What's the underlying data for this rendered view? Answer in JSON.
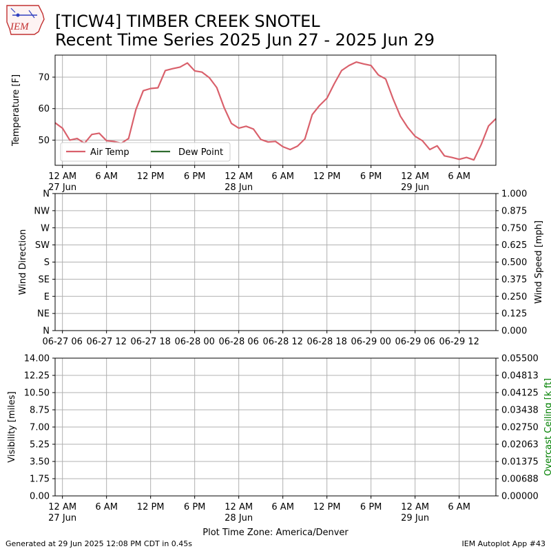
{
  "header": {
    "title_line1": "[TICW4] TIMBER CREEK SNOTEL",
    "title_line2": "Recent Time Series 2025 Jun 27 - 2025 Jun 29",
    "logo_text": "IEM"
  },
  "footer": {
    "generated": "Generated at 29 Jun 2025 12:08 PM CDT in 0.45s",
    "app": "IEM Autoplot App #43"
  },
  "colors": {
    "air_temp": "#d9606b",
    "dew_point": "#2e6b2e",
    "ceiling_label": "#008000",
    "grid": "#b0b0b0"
  },
  "chart_data": [
    {
      "type": "line",
      "ylabel": "Temperature [F]",
      "xlim_hours": [
        -1,
        59
      ],
      "ylim": [
        42,
        77
      ],
      "yticks": [
        50,
        60,
        70
      ],
      "grid": true,
      "legend": {
        "placement": "lower-left",
        "entries": [
          "Air Temp",
          "Dew Point"
        ]
      },
      "x_tick_labels": [
        {
          "hour": 0,
          "line1": "12 AM",
          "line2": "27 Jun"
        },
        {
          "hour": 6,
          "line1": "6 AM",
          "line2": ""
        },
        {
          "hour": 12,
          "line1": "12 PM",
          "line2": ""
        },
        {
          "hour": 18,
          "line1": "6 PM",
          "line2": ""
        },
        {
          "hour": 24,
          "line1": "12 AM",
          "line2": "28 Jun"
        },
        {
          "hour": 30,
          "line1": "6 AM",
          "line2": ""
        },
        {
          "hour": 36,
          "line1": "12 PM",
          "line2": ""
        },
        {
          "hour": 42,
          "line1": "6 PM",
          "line2": ""
        },
        {
          "hour": 48,
          "line1": "12 AM",
          "line2": "29 Jun"
        },
        {
          "hour": 54,
          "line1": "6 AM",
          "line2": ""
        }
      ],
      "series": [
        {
          "name": "Air Temp",
          "x_hours": [
            -1,
            0,
            1,
            2,
            3,
            4,
            5,
            6,
            7,
            8,
            9,
            10,
            11,
            12,
            13,
            14,
            15,
            16,
            17,
            18,
            19,
            20,
            21,
            22,
            23,
            24,
            25,
            26,
            27,
            28,
            29,
            30,
            31,
            32,
            33,
            34,
            35,
            36,
            37,
            38,
            39,
            40,
            41,
            42,
            43,
            44,
            45,
            46,
            47,
            48,
            49,
            50,
            51,
            52,
            53,
            54,
            55,
            56,
            57,
            58,
            59
          ],
          "values": [
            55.5,
            53.8,
            50.0,
            50.5,
            49.0,
            51.8,
            52.2,
            49.8,
            49.6,
            49.0,
            50.5,
            59.7,
            65.7,
            66.4,
            66.6,
            72.1,
            72.7,
            73.2,
            74.5,
            72.0,
            71.6,
            69.8,
            66.7,
            60.4,
            55.3,
            53.8,
            54.4,
            53.5,
            50.2,
            49.4,
            49.6,
            47.9,
            47.0,
            48.1,
            50.4,
            58.1,
            61.0,
            63.3,
            67.9,
            72.1,
            73.7,
            74.8,
            74.2,
            73.7,
            70.7,
            69.4,
            63.1,
            57.6,
            54.0,
            51.2,
            49.8,
            47.0,
            48.2,
            45.0,
            44.5,
            43.9,
            44.5,
            43.7,
            48.6,
            54.5,
            56.8
          ]
        },
        {
          "name": "Dew Point",
          "x_hours": [],
          "values": []
        }
      ]
    },
    {
      "type": "line",
      "ylabel": "Wind Direction",
      "ylabel_right": "Wind Speed [mph]",
      "xlim_hours": [
        -1,
        59
      ],
      "y_ticks_left": [
        "N",
        "NE",
        "E",
        "SE",
        "S",
        "SW",
        "W",
        "NW",
        "N"
      ],
      "y_ticks_right": [
        "0.000",
        "0.125",
        "0.250",
        "0.375",
        "0.500",
        "0.625",
        "0.750",
        "0.875",
        "1.000"
      ],
      "grid": true,
      "x_tick_labels": [
        {
          "hour": 0,
          "label": "06-27 06"
        },
        {
          "hour": 12,
          "label": "06-27 12"
        },
        {
          "hour": 24,
          "label": "06-27 18"
        },
        {
          "hour": 36,
          "label": "06-28 00"
        },
        {
          "hour": 48,
          "label": "06-28 06"
        },
        {
          "hour": 60,
          "label": "06-28 12"
        },
        {
          "hour": 72,
          "label": "06-28 18"
        },
        {
          "hour": 84,
          "label": "06-29 00"
        },
        {
          "hour": 96,
          "label": "06-29 06"
        },
        {
          "hour": 108,
          "label": "06-29 12"
        }
      ],
      "series": []
    },
    {
      "type": "line",
      "ylabel": "Visibility [miles]",
      "ylabel_right": "Overcast Ceiling [k ft]",
      "xlabel": "Plot Time Zone: America/Denver",
      "xlim_hours": [
        -1,
        59
      ],
      "y_ticks_left": [
        "0.00",
        "1.75",
        "3.50",
        "5.25",
        "7.00",
        "8.75",
        "10.50",
        "12.25",
        "14.00"
      ],
      "y_ticks_right": [
        "0.00000",
        "0.00688",
        "0.01375",
        "0.02063",
        "0.02750",
        "0.03438",
        "0.04125",
        "0.04813",
        "0.05500"
      ],
      "grid": true,
      "x_tick_labels": [
        {
          "hour": 0,
          "line1": "12 AM",
          "line2": "27 Jun"
        },
        {
          "hour": 6,
          "line1": "6 AM",
          "line2": ""
        },
        {
          "hour": 12,
          "line1": "12 PM",
          "line2": ""
        },
        {
          "hour": 18,
          "line1": "6 PM",
          "line2": ""
        },
        {
          "hour": 24,
          "line1": "12 AM",
          "line2": "28 Jun"
        },
        {
          "hour": 30,
          "line1": "6 AM",
          "line2": ""
        },
        {
          "hour": 36,
          "line1": "12 PM",
          "line2": ""
        },
        {
          "hour": 42,
          "line1": "6 PM",
          "line2": ""
        },
        {
          "hour": 48,
          "line1": "12 AM",
          "line2": "29 Jun"
        },
        {
          "hour": 54,
          "line1": "6 AM",
          "line2": ""
        }
      ],
      "series": []
    }
  ]
}
